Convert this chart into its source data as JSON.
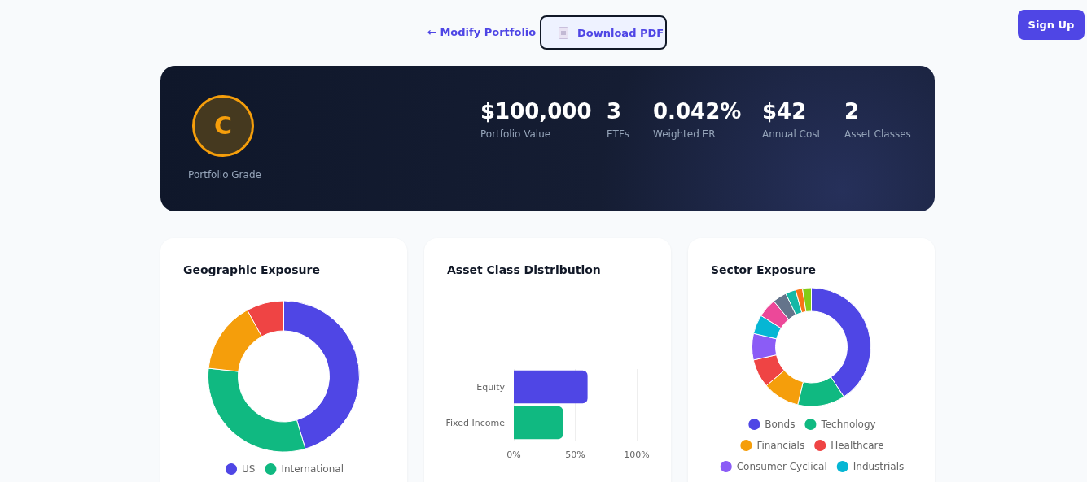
{
  "chart_data": [
    {
      "type": "other",
      "categories": [
        "Portfolio Grade",
        "Portfolio Value",
        "ETFs",
        "Weighted ER",
        "Annual Cost",
        "Asset Classes"
      ],
      "value_labels": [
        "C",
        "$100,000",
        "3",
        "0.042%",
        "$42",
        "2"
      ],
      "annotations": [
        "← Modify Portfolio",
        "Download PDF",
        "Sign Up"
      ]
    },
    {
      "type": "donut",
      "title": "Geographic Exposure",
      "categories": [
        "US",
        "International",
        null,
        null
      ],
      "values": [
        45.4,
        31.3,
        15.3,
        8.0
      ],
      "colors": [
        "#4f46e5",
        "#10b981",
        "#f59e0b",
        "#ef4444"
      ],
      "legend": "bottom"
    },
    {
      "type": "bar",
      "title": "Asset Class Distribution",
      "orientation": "horizontal",
      "categories": [
        "Equity",
        "Fixed Income"
      ],
      "values": [
        60,
        40
      ],
      "colors": [
        "#4f46e5",
        "#10b981"
      ],
      "xlim": [
        0,
        100
      ],
      "xticks": [
        {
          "value": 0,
          "label": "0%"
        },
        {
          "value": 50,
          "label": "50%"
        },
        {
          "value": 100,
          "label": "100%"
        }
      ],
      "grid": "x",
      "legend": false
    },
    {
      "type": "donut",
      "title": "Sector Exposure",
      "categories": [
        "Bonds",
        "Technology",
        "Financials",
        "Healthcare",
        "Consumer Cyclical",
        "Industrials",
        null,
        null,
        null,
        null,
        null
      ],
      "values": [
        40.8,
        12.9,
        10.0,
        7.8,
        7.2,
        5.2,
        5.2,
        3.8,
        2.8,
        1.9,
        2.4
      ],
      "colors": [
        "#4f46e5",
        "#10b981",
        "#f59e0b",
        "#ef4444",
        "#8b5cf6",
        "#06b6d4",
        "#ec4899",
        "#64748b",
        "#14b8a6",
        "#f97316",
        "#84cc16"
      ],
      "legend": "bottom"
    }
  ]
}
